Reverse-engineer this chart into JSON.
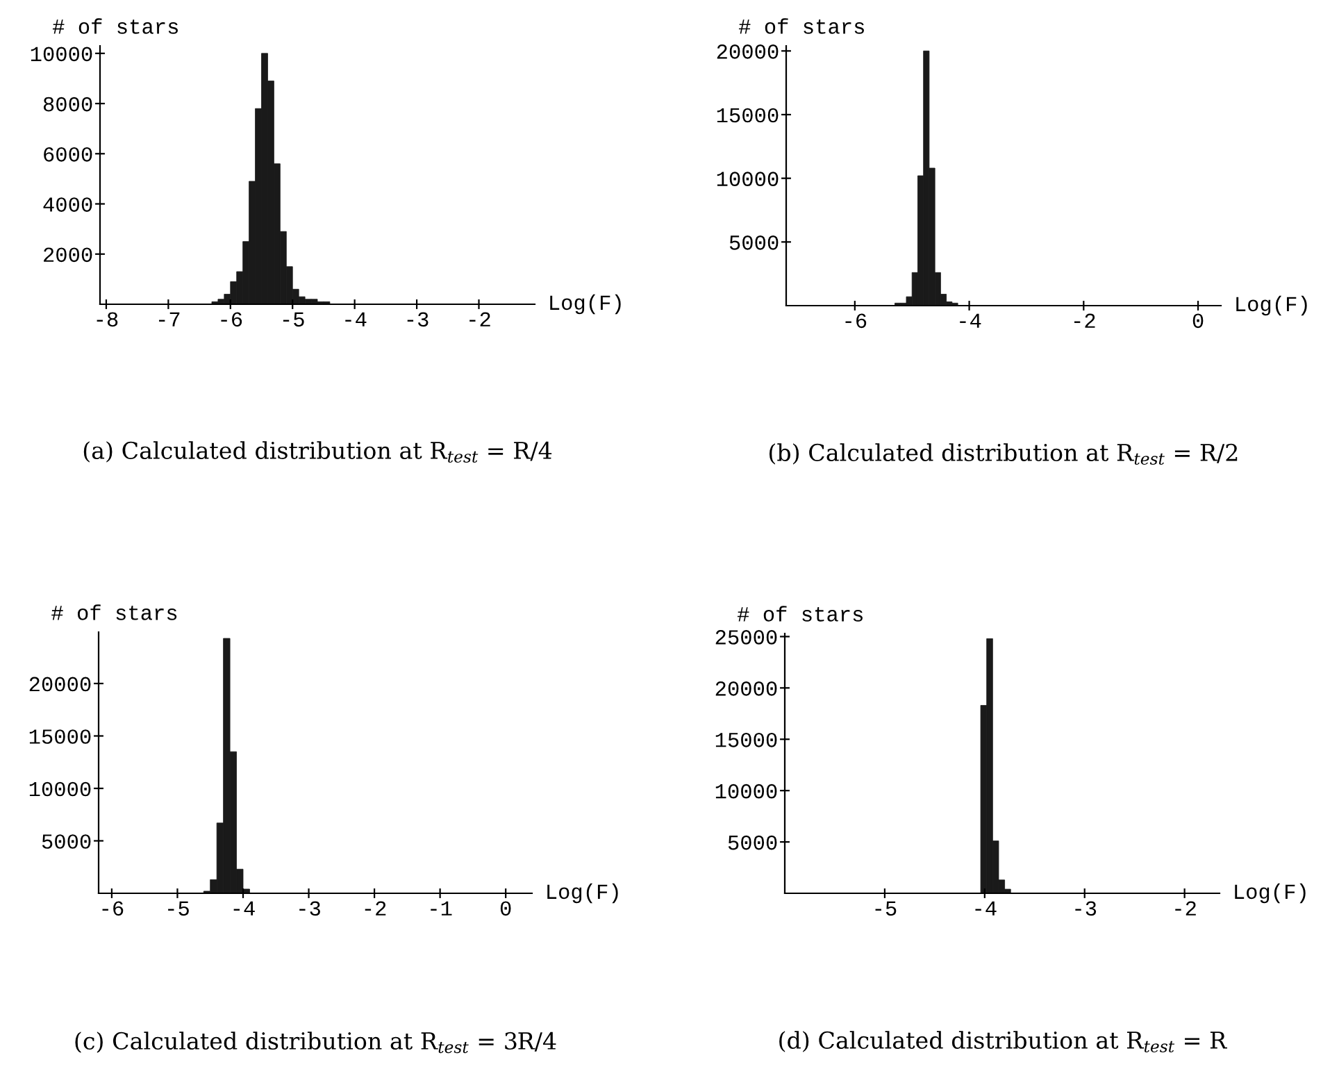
{
  "chart_data": [
    {
      "type": "histogram",
      "title": "(a) Calculated distribution at R$_{test}$ = R/4",
      "xlabel": "Log(F)",
      "ylabel": "# of stars",
      "color": "#1a1a1a",
      "bins": [
        -8.1,
        -6.3,
        -6.2,
        -6.1,
        -6.0,
        -5.9,
        -5.8,
        -5.7,
        -5.6,
        -5.5,
        -5.4,
        -5.3,
        -5.2,
        -5.1,
        -5.0,
        -4.9,
        -4.8,
        -4.7,
        -4.6,
        -4.5,
        -4.4,
        -1.1
      ],
      "values": [
        0,
        100,
        200,
        400,
        900,
        1300,
        2500,
        4900,
        7800,
        10000,
        8900,
        5600,
        2900,
        1500,
        600,
        300,
        200,
        200,
        100,
        100,
        0
      ],
      "xlim": [
        -8.1,
        -1.1
      ],
      "ylim": [
        0,
        10300
      ],
      "xticks": [
        -8,
        -7,
        -6,
        -5,
        -4,
        -3,
        -2
      ],
      "yticks": [
        2000,
        4000,
        6000,
        8000,
        10000
      ]
    },
    {
      "type": "histogram",
      "title": "(b) Calculated distribution at R$_{test}$ = R/2",
      "xlabel": "Log(F)",
      "ylabel": "# of stars",
      "color": "#1a1a1a",
      "bins": [
        -7.2,
        -5.3,
        -5.2,
        -5.1,
        -5.0,
        -4.9,
        -4.8,
        -4.7,
        -4.6,
        -4.5,
        -4.4,
        -4.3,
        -4.2,
        0.4
      ],
      "values": [
        0,
        200,
        200,
        700,
        2600,
        10200,
        20000,
        10800,
        2600,
        900,
        300,
        200,
        0
      ],
      "xlim": [
        -7.2,
        0.4
      ],
      "ylim": [
        0,
        20400
      ],
      "xticks": [
        -6,
        -4,
        -2,
        0
      ],
      "yticks": [
        5000,
        10000,
        15000,
        20000
      ]
    },
    {
      "type": "histogram",
      "title": "(c) Calculated distribution at R$_{test}$ = 3R/4",
      "xlabel": "Log(F)",
      "ylabel": "# of stars",
      "color": "#1a1a1a",
      "bins": [
        -6.2,
        -4.6,
        -4.5,
        -4.4,
        -4.3,
        -4.2,
        -4.1,
        -4.0,
        -3.9,
        0.4
      ],
      "values": [
        0,
        200,
        1300,
        6700,
        24300,
        13500,
        2300,
        400,
        0
      ],
      "xlim": [
        -6.2,
        0.4
      ],
      "ylim": [
        0,
        24900
      ],
      "xticks": [
        -6,
        -5,
        -4,
        -3,
        -2,
        -1,
        0
      ],
      "yticks": [
        5000,
        10000,
        15000,
        20000
      ]
    },
    {
      "type": "histogram",
      "title": "(d) Calculated distribution at R$_{test}$ = R",
      "xlabel": "Log(F)",
      "ylabel": "# of stars",
      "color": "#1a1a1a",
      "bins": [
        -6.0,
        -4.04,
        -3.98,
        -3.92,
        -3.86,
        -3.8,
        -3.74,
        -1.65
      ],
      "values": [
        0,
        18300,
        24800,
        5100,
        1300,
        400,
        0
      ],
      "xlim": [
        -6.0,
        -1.65
      ],
      "ylim": [
        0,
        25300
      ],
      "xticks": [
        -5,
        -4,
        -3,
        -2
      ],
      "yticks": [
        5000,
        10000,
        15000,
        20000,
        25000
      ]
    }
  ]
}
